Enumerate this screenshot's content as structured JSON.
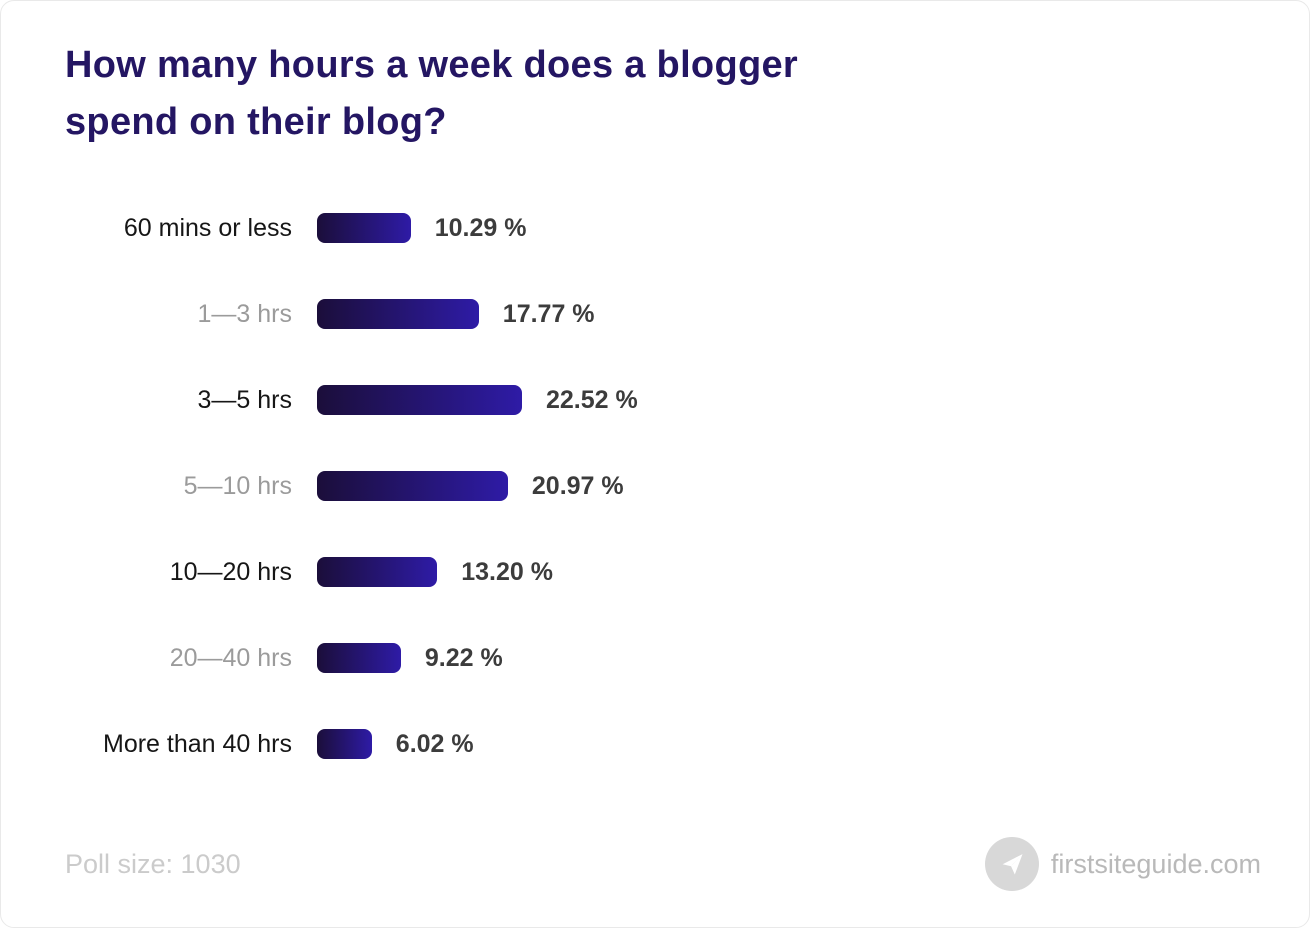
{
  "chart_data": {
    "type": "bar",
    "orientation": "horizontal",
    "title": "How many hours a week does a blogger spend on their blog?",
    "categories": [
      "60 mins or less",
      "1—3 hrs",
      "3—5 hrs",
      "5—10 hrs",
      "10—20 hrs",
      "20—40 hrs",
      "More than 40 hrs"
    ],
    "values": [
      10.29,
      17.77,
      22.52,
      20.97,
      13.2,
      9.22,
      6.02
    ],
    "value_labels": [
      "10.29 %",
      "17.77 %",
      "22.52 %",
      "20.97 %",
      "13.20 %",
      "9.22 %",
      "6.02 %"
    ],
    "xlim": [
      0,
      22.52
    ],
    "grid": "off",
    "legend": "none",
    "bar_color_start": "#1b0e3a",
    "bar_color_end": "#2e1ba6"
  },
  "footer": {
    "poll_size": "Poll size: 1030",
    "brand": "firstsiteguide.com",
    "brand_icon": "paper-plane-icon"
  },
  "colors": {
    "title": "#241663",
    "label_dark": "#161616",
    "label_muted": "#9b9b9b",
    "value_text": "#3c3c3c",
    "footer_text": "#cbcbcb",
    "brand_text": "#b9b9b9",
    "badge_bg": "#d8d8d8"
  }
}
